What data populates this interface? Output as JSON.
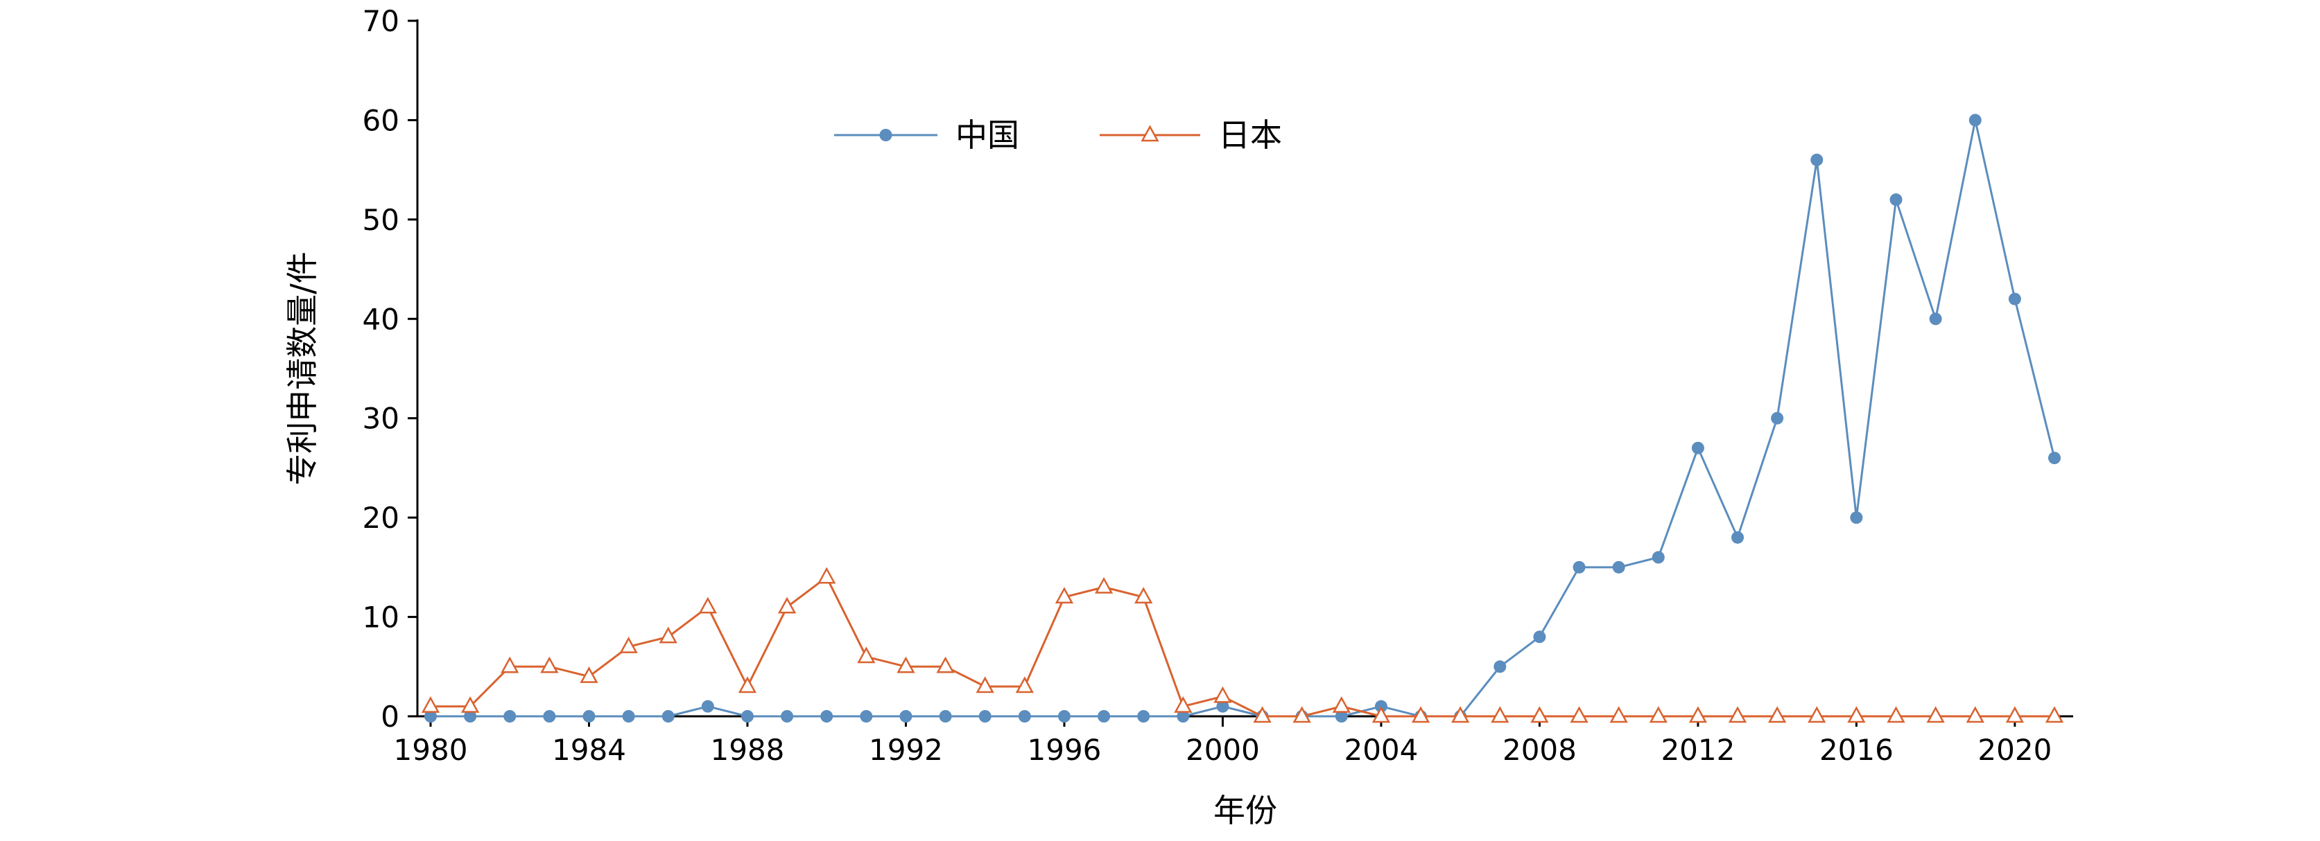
{
  "figure": {
    "background": "#ffffff",
    "axis_color": "#000000"
  },
  "chart_data": {
    "type": "line",
    "title": "",
    "xlabel": "年份",
    "ylabel": "专利申请数量/件",
    "grid": false,
    "legend_position": "top-center-inside",
    "ylim": [
      0,
      70
    ],
    "yticks": [
      0,
      10,
      20,
      30,
      40,
      50,
      60,
      70
    ],
    "xticks": [
      1980,
      1984,
      1988,
      1992,
      1996,
      2000,
      2004,
      2008,
      2012,
      2016,
      2020
    ],
    "xticks_minor": [
      1982,
      1986,
      1990,
      1994,
      1998,
      2002,
      2006,
      2010,
      2014,
      2018
    ],
    "x": [
      1980,
      1981,
      1982,
      1983,
      1984,
      1985,
      1986,
      1987,
      1988,
      1989,
      1990,
      1991,
      1992,
      1993,
      1994,
      1995,
      1996,
      1997,
      1998,
      1999,
      2000,
      2001,
      2002,
      2003,
      2004,
      2005,
      2006,
      2007,
      2008,
      2009,
      2010,
      2011,
      2012,
      2013,
      2014,
      2015,
      2016,
      2017,
      2018,
      2019,
      2020,
      2021
    ],
    "series": [
      {
        "name": "中国",
        "color": "#5b8dbe",
        "marker": "filled-circle",
        "values": [
          0,
          0,
          0,
          0,
          0,
          0,
          0,
          1,
          0,
          0,
          0,
          0,
          0,
          0,
          0,
          0,
          0,
          0,
          0,
          0,
          1,
          0,
          0,
          0,
          1,
          0,
          0,
          5,
          8,
          15,
          15,
          16,
          27,
          18,
          30,
          56,
          20,
          52,
          40,
          60,
          42,
          26
        ]
      },
      {
        "name": "日本",
        "color": "#d9622f",
        "marker": "open-triangle",
        "values": [
          1,
          1,
          5,
          5,
          4,
          7,
          8,
          11,
          3,
          11,
          14,
          6,
          5,
          5,
          3,
          3,
          12,
          13,
          12,
          1,
          2,
          0,
          0,
          1,
          0,
          0,
          0,
          0,
          0,
          0,
          0,
          0,
          0,
          0,
          0,
          0,
          0,
          0,
          0,
          0,
          0,
          0
        ]
      }
    ]
  }
}
